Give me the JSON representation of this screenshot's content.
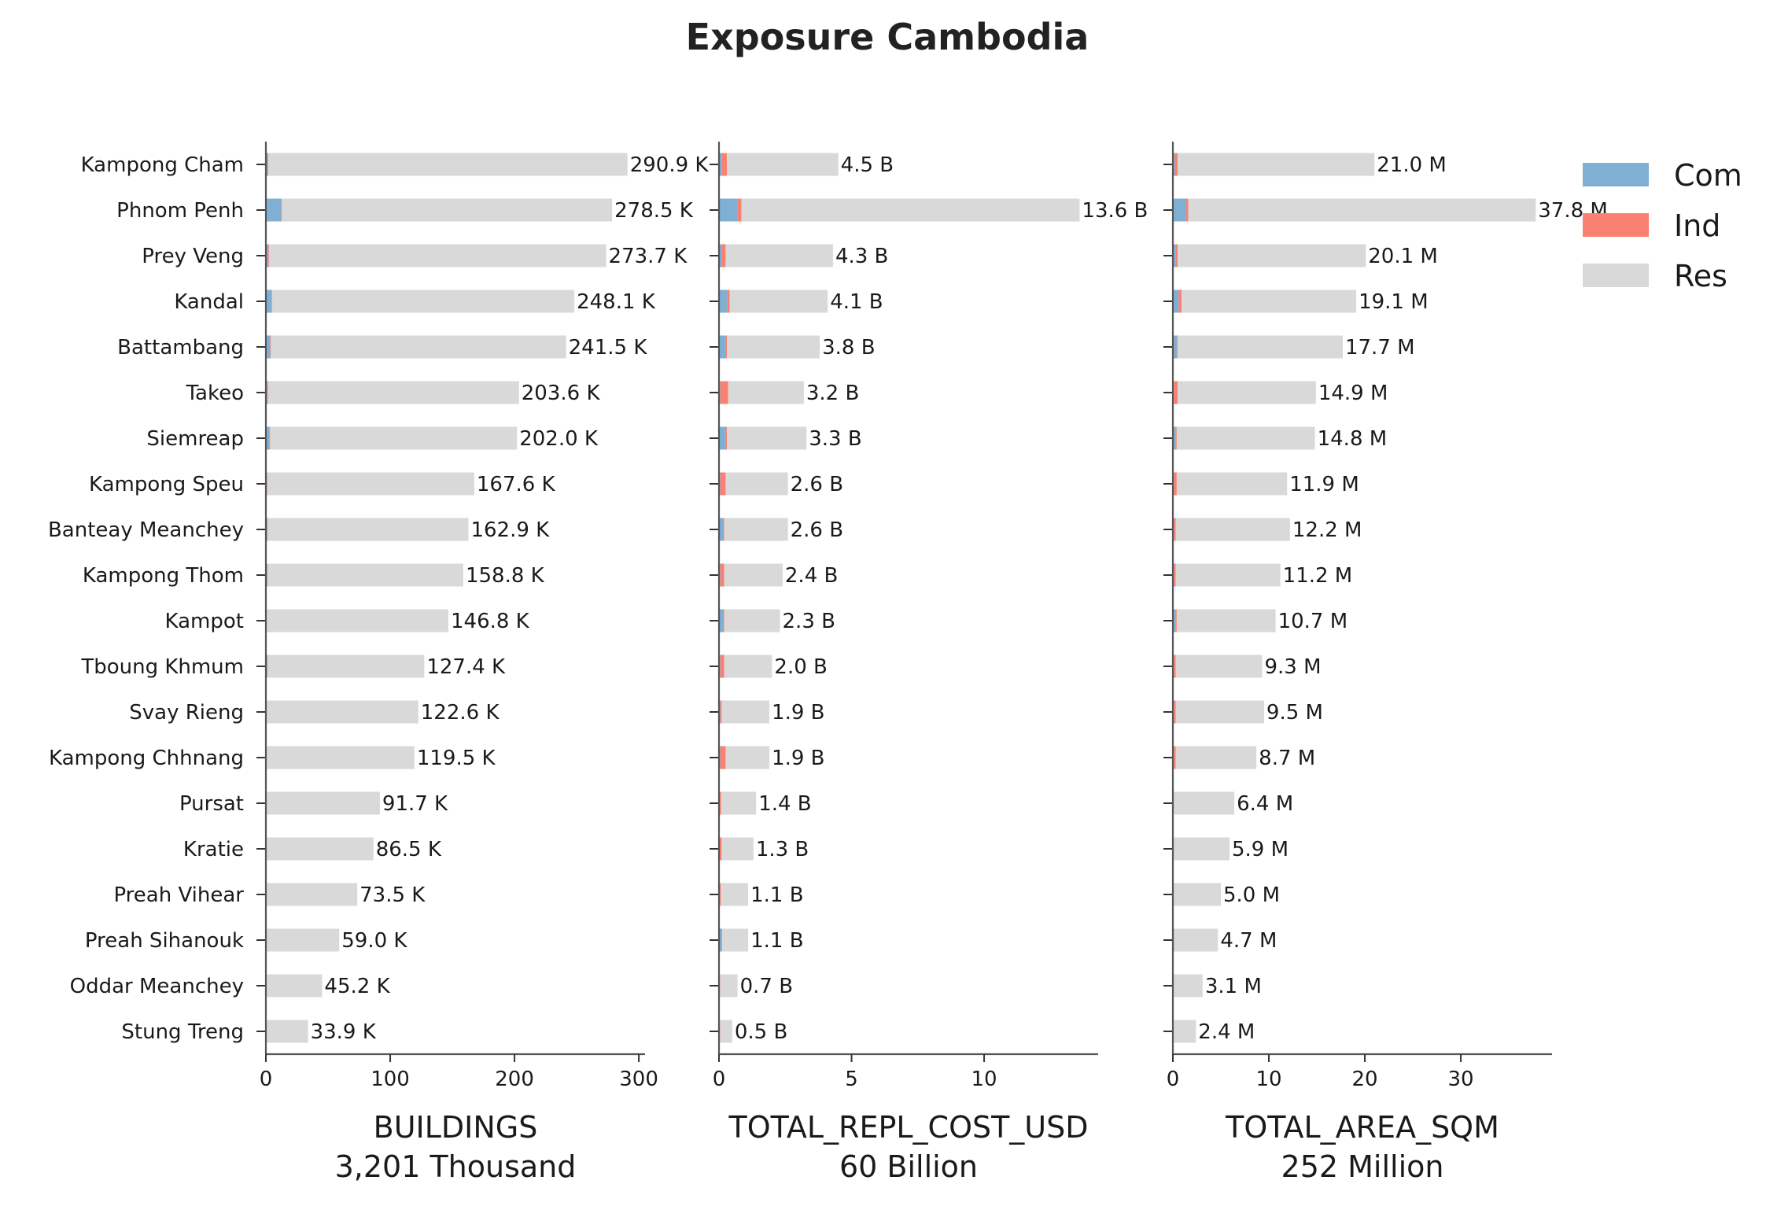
{
  "chart_data": {
    "type": "bar",
    "title": "Exposure Cambodia",
    "categories": [
      "Kampong Cham",
      "Phnom Penh",
      "Prey Veng",
      "Kandal",
      "Battambang",
      "Takeo",
      "Siemreap",
      "Kampong Speu",
      "Banteay Meanchey",
      "Kampong Thom",
      "Kampot",
      "Tboung Khmum",
      "Svay Rieng",
      "Kampong Chhnang",
      "Pursat",
      "Kratie",
      "Preah Vihear",
      "Preah Sihanouk",
      "Oddar Meanchey",
      "Stung Treng"
    ],
    "legend": {
      "position": "top-right",
      "entries": [
        {
          "name": "Com",
          "color": "#7fb0d3"
        },
        {
          "name": "Ind",
          "color": "#fa8072"
        },
        {
          "name": "Res",
          "color": "#d9d9d9"
        }
      ]
    },
    "grid": false,
    "panels": [
      {
        "xlabel": "BUILDINGS",
        "subtitle": "3,201 Thousand",
        "xlim": [
          0,
          305
        ],
        "xticks": [
          0,
          100,
          200,
          300
        ],
        "series": [
          {
            "name": "Com",
            "values": [
              1.5,
              12.0,
              2.0,
              4.5,
              3.5,
              1.0,
              3.0,
              0.5,
              1.0,
              1.0,
              0.5,
              1.0,
              0.5,
              0.5,
              0.3,
              0.3,
              0.2,
              0.3,
              0.2,
              0.1
            ]
          },
          {
            "name": "Ind",
            "values": [
              0.5,
              0.8,
              0.5,
              0.5,
              0.5,
              0.6,
              0.4,
              0.5,
              0.3,
              0.3,
              0.3,
              0.4,
              0.3,
              0.3,
              0.2,
              0.2,
              0.1,
              0.1,
              0.1,
              0.1
            ]
          },
          {
            "name": "Res",
            "values": [
              288.9,
              265.7,
              271.2,
              243.1,
              237.5,
              202.0,
              198.6,
              166.6,
              161.6,
              157.5,
              146.0,
              126.0,
              121.8,
              118.7,
              91.2,
              86.0,
              73.2,
              58.6,
              44.9,
              33.7
            ]
          }
        ],
        "totals": [
          290.9,
          278.5,
          273.7,
          248.1,
          241.5,
          203.6,
          202.0,
          167.6,
          162.9,
          158.8,
          146.8,
          127.4,
          122.6,
          119.5,
          91.7,
          86.5,
          73.5,
          59.0,
          45.2,
          33.9
        ],
        "labels": [
          "290.9 K",
          "278.5 K",
          "273.7 K",
          "248.1 K",
          "241.5 K",
          "203.6 K",
          "202.0 K",
          "167.6 K",
          "162.9 K",
          "158.8 K",
          "146.8 K",
          "127.4 K",
          "122.6 K",
          "119.5 K",
          "91.7 K",
          "86.5 K",
          "73.5 K",
          "59.0 K",
          "45.2 K",
          "33.9 K"
        ]
      },
      {
        "xlabel": "TOTAL_REPL_COST_USD",
        "subtitle": "60 Billion",
        "xlim": [
          0,
          14.3
        ],
        "xticks": [
          0,
          5,
          10
        ],
        "series": [
          {
            "name": "Com",
            "values": [
              0.1,
              0.7,
              0.1,
              0.3,
              0.25,
              0.05,
              0.25,
              0.05,
              0.15,
              0.05,
              0.15,
              0.05,
              0.05,
              0.05,
              0.03,
              0.03,
              0.02,
              0.1,
              0.02,
              0.02
            ]
          },
          {
            "name": "Ind",
            "values": [
              0.2,
              0.15,
              0.15,
              0.1,
              0.05,
              0.3,
              0.05,
              0.2,
              0.05,
              0.15,
              0.05,
              0.15,
              0.05,
              0.2,
              0.05,
              0.07,
              0.05,
              0.02,
              0.02,
              0.02
            ]
          },
          {
            "name": "Res",
            "values": [
              4.2,
              12.75,
              4.05,
              3.7,
              3.5,
              2.85,
              3.0,
              2.35,
              2.4,
              2.2,
              2.1,
              1.8,
              1.8,
              1.65,
              1.32,
              1.2,
              1.03,
              0.98,
              0.66,
              0.46
            ]
          }
        ],
        "totals": [
          4.5,
          13.6,
          4.3,
          4.1,
          3.8,
          3.2,
          3.3,
          2.6,
          2.6,
          2.4,
          2.3,
          2.0,
          1.9,
          1.9,
          1.4,
          1.3,
          1.1,
          1.1,
          0.7,
          0.5
        ],
        "labels": [
          "4.5 B",
          "13.6 B",
          "4.3 B",
          "4.1 B",
          "3.8 B",
          "3.2 B",
          "3.3 B",
          "2.6 B",
          "2.6 B",
          "2.4 B",
          "2.3 B",
          "2.0 B",
          "1.9 B",
          "1.9 B",
          "1.4 B",
          "1.3 B",
          "1.1 B",
          "1.1 B",
          "0.7 B",
          "0.5 B"
        ]
      },
      {
        "xlabel": "TOTAL_AREA_SQM",
        "subtitle": "252 Million",
        "xlim": [
          0,
          39.5
        ],
        "xticks": [
          0,
          10,
          20,
          30
        ],
        "series": [
          {
            "name": "Com",
            "values": [
              0.2,
              1.4,
              0.3,
              0.6,
              0.4,
              0.1,
              0.3,
              0.1,
              0.1,
              0.1,
              0.3,
              0.1,
              0.1,
              0.1,
              0.05,
              0.05,
              0.05,
              0.1,
              0.03,
              0.02
            ]
          },
          {
            "name": "Ind",
            "values": [
              0.3,
              0.2,
              0.2,
              0.3,
              0.1,
              0.4,
              0.1,
              0.3,
              0.2,
              0.2,
              0.1,
              0.2,
              0.2,
              0.2,
              0.05,
              0.05,
              0.05,
              0.03,
              0.03,
              0.02
            ]
          },
          {
            "name": "Res",
            "values": [
              20.5,
              36.2,
              19.6,
              18.2,
              17.2,
              14.4,
              14.4,
              11.5,
              11.9,
              10.9,
              10.3,
              9.0,
              9.2,
              8.4,
              6.3,
              5.8,
              4.9,
              4.57,
              3.04,
              2.36
            ]
          }
        ],
        "totals": [
          21.0,
          37.8,
          20.1,
          19.1,
          17.7,
          14.9,
          14.8,
          11.9,
          12.2,
          11.2,
          10.7,
          9.3,
          9.5,
          8.7,
          6.4,
          5.9,
          5.0,
          4.7,
          3.1,
          2.4
        ],
        "labels": [
          "21.0 M",
          "37.8 M",
          "20.1 M",
          "19.1 M",
          "17.7 M",
          "14.9 M",
          "14.8 M",
          "11.9 M",
          "12.2 M",
          "11.2 M",
          "10.7 M",
          "9.3 M",
          "9.5 M",
          "8.7 M",
          "6.4 M",
          "5.9 M",
          "5.0 M",
          "4.7 M",
          "3.1 M",
          "2.4 M"
        ]
      }
    ]
  }
}
